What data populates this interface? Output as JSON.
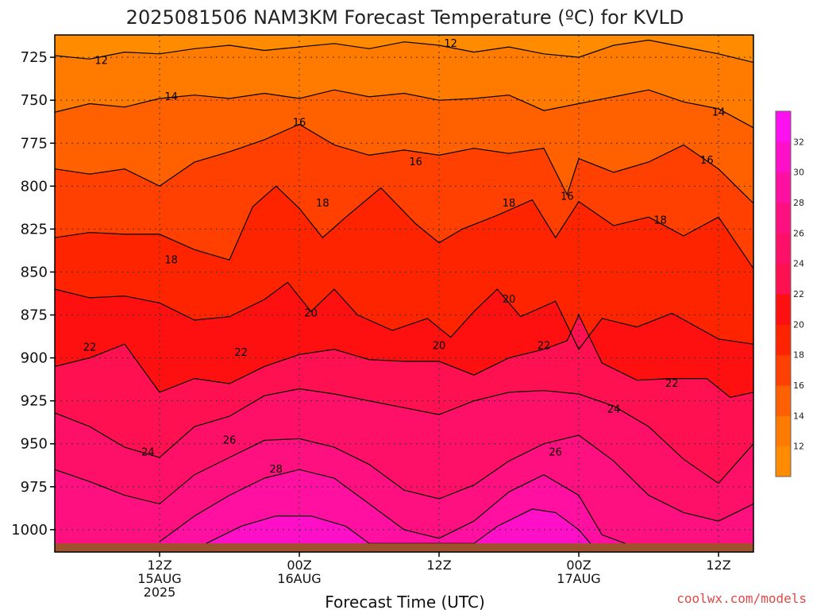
{
  "chart_data": {
    "type": "contour",
    "title": "2025081506 NAM3KM Forecast Temperature (ºC) for KVLD",
    "xlabel": "Forecast Time (UTC)",
    "ylabel": "",
    "credit": "coolwx.com/models",
    "x_range_hours": [
      -3,
      57
    ],
    "y_range_hpa": [
      712,
      1013
    ],
    "y_ticks": [
      {
        "value": 725,
        "label": "725"
      },
      {
        "value": 750,
        "label": "750"
      },
      {
        "value": 775,
        "label": "775"
      },
      {
        "value": 800,
        "label": "800"
      },
      {
        "value": 825,
        "label": "825"
      },
      {
        "value": 850,
        "label": "850"
      },
      {
        "value": 875,
        "label": "875"
      },
      {
        "value": 900,
        "label": "900"
      },
      {
        "value": 925,
        "label": "925"
      },
      {
        "value": 950,
        "label": "950"
      },
      {
        "value": 975,
        "label": "975"
      },
      {
        "value": 1000,
        "label": "1000"
      }
    ],
    "x_ticks": [
      {
        "value": 6,
        "lines": [
          "12Z",
          "15AUG",
          "2025"
        ]
      },
      {
        "value": 18,
        "lines": [
          "00Z",
          "16AUG"
        ]
      },
      {
        "value": 30,
        "lines": [
          "12Z"
        ]
      },
      {
        "value": 42,
        "lines": [
          "00Z",
          "17AUG"
        ]
      },
      {
        "value": 54,
        "lines": [
          "12Z"
        ]
      }
    ],
    "colorbar": [
      {
        "value": 10,
        "color": "#ff8c00"
      },
      {
        "value": 12,
        "color": "#ff7b00"
      },
      {
        "value": 14,
        "color": "#ff6000"
      },
      {
        "value": 16,
        "color": "#ff4000"
      },
      {
        "value": 18,
        "color": "#ff2400"
      },
      {
        "value": 20,
        "color": "#ff1010"
      },
      {
        "value": 22,
        "color": "#ff1050"
      },
      {
        "value": 24,
        "color": "#ff1068"
      },
      {
        "value": 26,
        "color": "#ff1080"
      },
      {
        "value": 28,
        "color": "#ff10a0"
      },
      {
        "value": 30,
        "color": "#ff10c8"
      },
      {
        "value": 32,
        "color": "#ff10f0"
      }
    ],
    "colorbar_labels": [
      "12",
      "14",
      "16",
      "18",
      "20",
      "22",
      "24",
      "26",
      "28",
      "30",
      "32"
    ],
    "ground_color": "#a0522d",
    "contours": [
      {
        "level": 12,
        "label": "12",
        "points": [
          [
            -3,
            724
          ],
          [
            0,
            726
          ],
          [
            3,
            722
          ],
          [
            6,
            723
          ],
          [
            9,
            720
          ],
          [
            12,
            718
          ],
          [
            15,
            721
          ],
          [
            18,
            719
          ],
          [
            21,
            717
          ],
          [
            24,
            720
          ],
          [
            27,
            716
          ],
          [
            30,
            718
          ],
          [
            33,
            722
          ],
          [
            36,
            719
          ],
          [
            39,
            723
          ],
          [
            42,
            725
          ],
          [
            45,
            718
          ],
          [
            48,
            715
          ],
          [
            51,
            719
          ],
          [
            54,
            723
          ],
          [
            57,
            728
          ]
        ],
        "labels": [
          [
            1,
            727
          ],
          [
            31,
            717
          ]
        ]
      },
      {
        "level": 14,
        "label": "14",
        "points": [
          [
            -3,
            757
          ],
          [
            0,
            752
          ],
          [
            3,
            754
          ],
          [
            6,
            749
          ],
          [
            9,
            747
          ],
          [
            12,
            749
          ],
          [
            15,
            746
          ],
          [
            18,
            749
          ],
          [
            21,
            744
          ],
          [
            24,
            748
          ],
          [
            27,
            746
          ],
          [
            30,
            750
          ],
          [
            33,
            749
          ],
          [
            36,
            747
          ],
          [
            39,
            756
          ],
          [
            42,
            752
          ],
          [
            45,
            748
          ],
          [
            48,
            744
          ],
          [
            51,
            751
          ],
          [
            54,
            755
          ],
          [
            57,
            766
          ]
        ],
        "labels": [
          [
            7,
            748
          ],
          [
            54,
            757
          ]
        ]
      },
      {
        "level": 16,
        "label": "16",
        "points": [
          [
            -3,
            790
          ],
          [
            0,
            793
          ],
          [
            3,
            790
          ],
          [
            6,
            800
          ],
          [
            9,
            786
          ],
          [
            12,
            780
          ],
          [
            15,
            773
          ],
          [
            18,
            764
          ],
          [
            21,
            776
          ],
          [
            24,
            782
          ],
          [
            27,
            779
          ],
          [
            30,
            782
          ],
          [
            33,
            778
          ],
          [
            36,
            781
          ],
          [
            39,
            778
          ],
          [
            41,
            805
          ],
          [
            42,
            784
          ],
          [
            45,
            792
          ],
          [
            48,
            786
          ],
          [
            51,
            776
          ],
          [
            54,
            790
          ],
          [
            57,
            810
          ]
        ],
        "labels": [
          [
            18,
            763
          ],
          [
            28,
            786
          ],
          [
            41,
            806
          ],
          [
            53,
            785
          ]
        ]
      },
      {
        "level": 18,
        "label": "18",
        "points": [
          [
            -3,
            830
          ],
          [
            0,
            827
          ],
          [
            3,
            828
          ],
          [
            6,
            828
          ],
          [
            9,
            837
          ],
          [
            12,
            843
          ],
          [
            14,
            812
          ],
          [
            16,
            800
          ],
          [
            18,
            813
          ],
          [
            20,
            830
          ],
          [
            22,
            818
          ],
          [
            25,
            801
          ],
          [
            28,
            822
          ],
          [
            30,
            833
          ],
          [
            32,
            825
          ],
          [
            35,
            817
          ],
          [
            38,
            808
          ],
          [
            40,
            830
          ],
          [
            42,
            809
          ],
          [
            45,
            823
          ],
          [
            48,
            818
          ],
          [
            51,
            829
          ],
          [
            54,
            818
          ],
          [
            57,
            848
          ]
        ],
        "labels": [
          [
            7,
            843
          ],
          [
            20,
            810
          ],
          [
            36,
            810
          ],
          [
            49,
            820
          ]
        ]
      },
      {
        "level": 20,
        "label": "20",
        "points": [
          [
            -3,
            860
          ],
          [
            0,
            865
          ],
          [
            3,
            864
          ],
          [
            6,
            868
          ],
          [
            9,
            878
          ],
          [
            12,
            876
          ],
          [
            15,
            866
          ],
          [
            17,
            856
          ],
          [
            19,
            873
          ],
          [
            21,
            860
          ],
          [
            23,
            875
          ],
          [
            26,
            884
          ],
          [
            29,
            877
          ],
          [
            31,
            888
          ],
          [
            33,
            873
          ],
          [
            35,
            860
          ],
          [
            37,
            876
          ],
          [
            40,
            867
          ],
          [
            42,
            895
          ],
          [
            44,
            877
          ],
          [
            47,
            882
          ],
          [
            50,
            874
          ],
          [
            54,
            889
          ],
          [
            57,
            892
          ]
        ],
        "labels": [
          [
            19,
            874
          ],
          [
            30,
            893
          ],
          [
            36,
            866
          ]
        ]
      },
      {
        "level": 22,
        "label": "22",
        "points": [
          [
            -3,
            905
          ],
          [
            0,
            900
          ],
          [
            3,
            892
          ],
          [
            6,
            920
          ],
          [
            9,
            912
          ],
          [
            12,
            915
          ],
          [
            15,
            905
          ],
          [
            18,
            898
          ],
          [
            21,
            895
          ],
          [
            24,
            901
          ],
          [
            27,
            902
          ],
          [
            30,
            902
          ],
          [
            33,
            910
          ],
          [
            36,
            900
          ],
          [
            39,
            895
          ],
          [
            41,
            890
          ],
          [
            42,
            875
          ],
          [
            44,
            903
          ],
          [
            47,
            913
          ],
          [
            50,
            912
          ],
          [
            53,
            912
          ],
          [
            55,
            923
          ],
          [
            57,
            920
          ]
        ],
        "labels": [
          [
            0,
            894
          ],
          [
            13,
            897
          ],
          [
            39,
            893
          ],
          [
            50,
            915
          ]
        ]
      },
      {
        "level": 24,
        "label": "24",
        "points": [
          [
            -3,
            932
          ],
          [
            0,
            940
          ],
          [
            3,
            952
          ],
          [
            6,
            958
          ],
          [
            9,
            940
          ],
          [
            12,
            934
          ],
          [
            15,
            922
          ],
          [
            18,
            918
          ],
          [
            21,
            921
          ],
          [
            24,
            925
          ],
          [
            27,
            929
          ],
          [
            30,
            933
          ],
          [
            33,
            925
          ],
          [
            36,
            920
          ],
          [
            39,
            919
          ],
          [
            42,
            921
          ],
          [
            45,
            928
          ],
          [
            48,
            940
          ],
          [
            51,
            959
          ],
          [
            54,
            973
          ],
          [
            57,
            950
          ]
        ],
        "labels": [
          [
            5,
            955
          ],
          [
            45,
            930
          ]
        ]
      },
      {
        "level": 26,
        "label": "26",
        "points": [
          [
            -3,
            965
          ],
          [
            0,
            972
          ],
          [
            3,
            980
          ],
          [
            6,
            985
          ],
          [
            9,
            968
          ],
          [
            12,
            958
          ],
          [
            15,
            948
          ],
          [
            18,
            947
          ],
          [
            21,
            952
          ],
          [
            24,
            962
          ],
          [
            27,
            977
          ],
          [
            30,
            982
          ],
          [
            33,
            974
          ],
          [
            36,
            960
          ],
          [
            39,
            950
          ],
          [
            42,
            945
          ],
          [
            45,
            960
          ],
          [
            48,
            980
          ],
          [
            51,
            990
          ],
          [
            54,
            995
          ],
          [
            57,
            985
          ]
        ],
        "labels": [
          [
            12,
            948
          ],
          [
            40,
            955
          ]
        ]
      },
      {
        "level": 28,
        "label": "28",
        "points": [
          [
            6,
            1007
          ],
          [
            9,
            992
          ],
          [
            12,
            980
          ],
          [
            15,
            970
          ],
          [
            18,
            965
          ],
          [
            21,
            970
          ],
          [
            24,
            985
          ],
          [
            27,
            1000
          ],
          [
            30,
            1005
          ],
          [
            33,
            995
          ],
          [
            36,
            978
          ],
          [
            39,
            968
          ],
          [
            42,
            980
          ],
          [
            44,
            1003
          ],
          [
            46,
            1008
          ]
        ],
        "labels": [
          [
            16,
            965
          ]
        ]
      },
      {
        "level": 30,
        "label": "30",
        "points": [
          [
            10,
            1008
          ],
          [
            13,
            998
          ],
          [
            16,
            992
          ],
          [
            19,
            992
          ],
          [
            22,
            998
          ],
          [
            24,
            1008
          ],
          [
            33,
            1008
          ],
          [
            35,
            998
          ],
          [
            38,
            988
          ],
          [
            40,
            990
          ],
          [
            42,
            1000
          ],
          [
            43,
            1008
          ]
        ],
        "labels": []
      }
    ]
  }
}
